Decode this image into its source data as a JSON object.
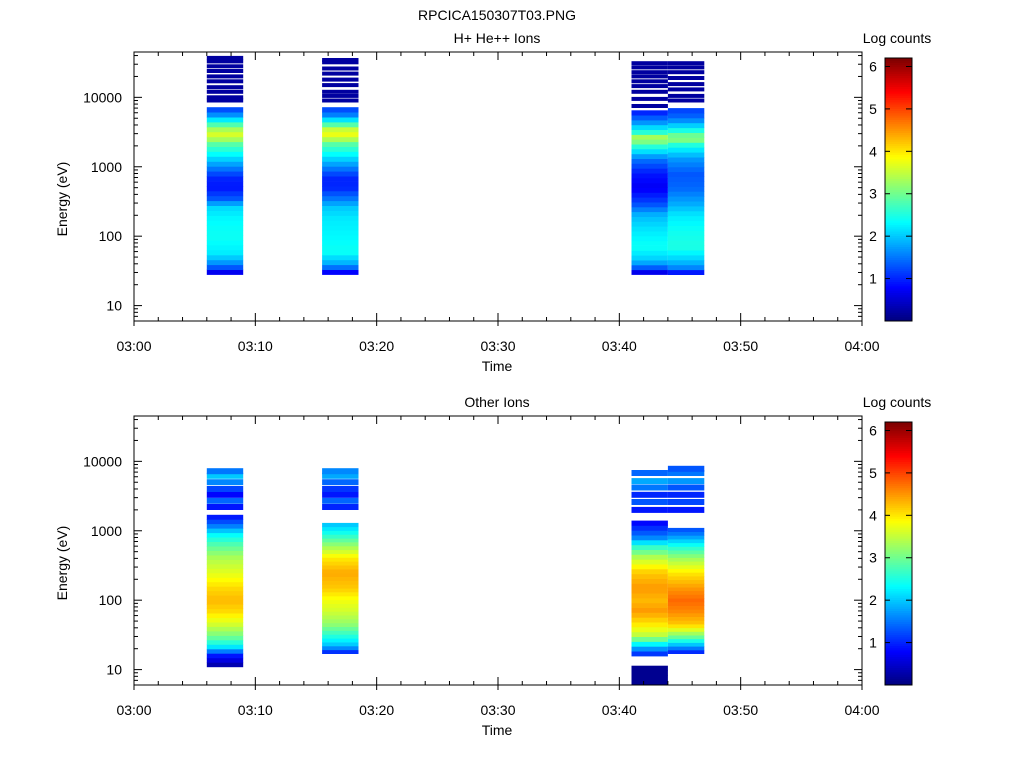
{
  "figure_title": "RPCICA150307T03.PNG",
  "chart_data": [
    {
      "type": "heatmap",
      "title": "H+ He++ Ions",
      "xlabel": "Time",
      "ylabel": "Energy (eV)",
      "x_ticks": [
        "03:00",
        "03:10",
        "03:20",
        "03:30",
        "03:40",
        "03:50",
        "04:00"
      ],
      "x_range": [
        "03:00",
        "04:00"
      ],
      "y_scale": "log",
      "y_ticks": [
        "10",
        "100",
        "1000",
        "10000"
      ],
      "y_range": [
        6,
        45000
      ],
      "colorbar": {
        "label": "Log counts",
        "range": [
          0,
          6.2
        ],
        "ticks": [
          "1",
          "2",
          "3",
          "4",
          "5",
          "6"
        ]
      },
      "columns": [
        {
          "t_start": 6.0,
          "t_end": 9.0,
          "profile": [
            [
              28,
              0.2
            ],
            [
              32,
              1.0
            ],
            [
              40,
              1.6
            ],
            [
              55,
              2.2
            ],
            [
              100,
              2.4
            ],
            [
              180,
              2.3
            ],
            [
              260,
              2.1
            ],
            [
              350,
              1.3
            ],
            [
              500,
              0.9
            ],
            [
              700,
              1.0
            ],
            [
              1000,
              1.6
            ],
            [
              1500,
              2.3
            ],
            [
              2200,
              2.9
            ],
            [
              2800,
              3.7
            ],
            [
              3400,
              3.4
            ],
            [
              4200,
              2.7
            ],
            [
              5500,
              1.7
            ],
            [
              6800,
              1.2
            ]
          ],
          "gap_start": 7200,
          "lines": [
            9000,
            10000,
            12000,
            14000,
            17000,
            20000,
            24000,
            28000,
            33000,
            37000
          ]
        },
        {
          "t_start": 15.5,
          "t_end": 18.5,
          "profile": [
            [
              28,
              0.3
            ],
            [
              32,
              1.1
            ],
            [
              40,
              1.8
            ],
            [
              60,
              2.4
            ],
            [
              100,
              2.3
            ],
            [
              180,
              2.2
            ],
            [
              260,
              2.0
            ],
            [
              350,
              1.5
            ],
            [
              500,
              1.0
            ],
            [
              700,
              1.0
            ],
            [
              1000,
              1.6
            ],
            [
              1500,
              2.3
            ],
            [
              2200,
              2.9
            ],
            [
              2800,
              3.8
            ],
            [
              3400,
              3.6
            ],
            [
              4200,
              2.7
            ],
            [
              5500,
              1.6
            ],
            [
              6800,
              1.2
            ]
          ],
          "gap_start": 7200,
          "lines": [
            9000,
            10500,
            12000,
            15000,
            18000,
            22000,
            26000,
            32000,
            34500
          ]
        },
        {
          "t_start": 41.0,
          "t_end": 44.0,
          "profile": [
            [
              28,
              0.3
            ],
            [
              34,
              1.2
            ],
            [
              45,
              2.0
            ],
            [
              70,
              2.4
            ],
            [
              120,
              2.2
            ],
            [
              200,
              1.9
            ],
            [
              300,
              1.2
            ],
            [
              500,
              0.7
            ],
            [
              800,
              0.9
            ],
            [
              1300,
              1.5
            ],
            [
              2000,
              2.6
            ],
            [
              2600,
              3.5
            ],
            [
              3200,
              2.5
            ],
            [
              4500,
              1.6
            ],
            [
              6000,
              1.0
            ]
          ],
          "gap_start": 6500,
          "lines": [
            7500,
            9500,
            12000,
            14500,
            17000,
            20000,
            23000,
            27000,
            31000
          ]
        },
        {
          "t_start": 44.0,
          "t_end": 47.0,
          "profile": [
            [
              28,
              0.5
            ],
            [
              34,
              1.5
            ],
            [
              45,
              2.0
            ],
            [
              70,
              2.5
            ],
            [
              120,
              2.4
            ],
            [
              200,
              2.2
            ],
            [
              300,
              1.8
            ],
            [
              500,
              1.4
            ],
            [
              800,
              1.3
            ],
            [
              1300,
              1.7
            ],
            [
              2000,
              2.4
            ],
            [
              2600,
              3.3
            ],
            [
              3200,
              2.6
            ],
            [
              4500,
              1.7
            ],
            [
              6000,
              1.2
            ]
          ],
          "gap_start": 7000,
          "lines": [
            9000,
            10500,
            13000,
            15500,
            19000,
            23000,
            27000,
            31000
          ]
        }
      ]
    },
    {
      "type": "heatmap",
      "title": "Other Ions",
      "xlabel": "Time",
      "ylabel": "Energy (eV)",
      "x_ticks": [
        "03:00",
        "03:10",
        "03:20",
        "03:30",
        "03:40",
        "03:50",
        "04:00"
      ],
      "x_range": [
        "03:00",
        "04:00"
      ],
      "y_scale": "log",
      "y_ticks": [
        "10",
        "100",
        "1000",
        "10000"
      ],
      "y_range": [
        6,
        45000
      ],
      "colorbar": {
        "label": "Log counts",
        "range": [
          0,
          6.2
        ],
        "ticks": [
          "1",
          "2",
          "3",
          "4",
          "5",
          "6"
        ]
      },
      "columns": [
        {
          "t_start": 6.0,
          "t_end": 9.0,
          "profile": [
            [
              11,
              0.15
            ],
            [
              16,
              0.9
            ],
            [
              22,
              2.3
            ],
            [
              30,
              3.0
            ],
            [
              45,
              3.6
            ],
            [
              70,
              4.1
            ],
            [
              100,
              4.3
            ],
            [
              150,
              4.1
            ],
            [
              250,
              3.7
            ],
            [
              400,
              3.4
            ],
            [
              600,
              2.9
            ],
            [
              900,
              2.3
            ],
            [
              1200,
              1.5
            ],
            [
              1600,
              0.9
            ]
          ],
          "gap_start": 1700,
          "upper": [
            [
              2200,
              0.9
            ],
            [
              2700,
              1.4
            ],
            [
              3300,
              0.8
            ],
            [
              4000,
              1.2
            ],
            [
              5000,
              1.6
            ],
            [
              6200,
              2.0
            ],
            [
              7200,
              1.5
            ]
          ]
        },
        {
          "t_start": 15.5,
          "t_end": 18.5,
          "profile": [
            [
              17,
              0.8
            ],
            [
              22,
              1.9
            ],
            [
              30,
              2.5
            ],
            [
              45,
              3.2
            ],
            [
              70,
              3.6
            ],
            [
              100,
              3.8
            ],
            [
              150,
              4.2
            ],
            [
              250,
              4.4
            ],
            [
              400,
              4.0
            ],
            [
              600,
              3.3
            ],
            [
              900,
              2.5
            ],
            [
              1200,
              2.0
            ]
          ],
          "gap_start": 1300,
          "upper": [
            [
              2200,
              1.0
            ],
            [
              2700,
              1.4
            ],
            [
              3300,
              0.9
            ],
            [
              4000,
              1.1
            ],
            [
              5000,
              1.4
            ],
            [
              6200,
              1.8
            ],
            [
              7200,
              1.6
            ]
          ]
        },
        {
          "t_start": 41.0,
          "t_end": 44.0,
          "profile": [
            [
              6,
              0.1
            ],
            [
              11,
              0.1
            ],
            [
              16,
              0.9
            ],
            [
              22,
              2.0
            ],
            [
              30,
              3.4
            ],
            [
              45,
              4.0
            ],
            [
              70,
              4.5
            ],
            [
              100,
              4.3
            ],
            [
              150,
              4.5
            ],
            [
              250,
              4.2
            ],
            [
              400,
              3.5
            ],
            [
              600,
              2.6
            ],
            [
              800,
              1.6
            ],
            [
              1000,
              1.2
            ],
            [
              1300,
              0.8
            ]
          ],
          "gap_start": 1400,
          "upper": [
            [
              2000,
              0.9
            ],
            [
              2600,
              1.3
            ],
            [
              3300,
              1.0
            ],
            [
              4200,
              1.5
            ],
            [
              5200,
              1.8
            ],
            [
              6800,
              1.4
            ]
          ],
          "low_gap": [
            11,
            16
          ]
        },
        {
          "t_start": 44.0,
          "t_end": 47.0,
          "profile": [
            [
              17,
              0.8
            ],
            [
              22,
              1.8
            ],
            [
              30,
              3.0
            ],
            [
              45,
              4.2
            ],
            [
              70,
              4.6
            ],
            [
              100,
              4.8
            ],
            [
              150,
              4.5
            ],
            [
              250,
              4.0
            ],
            [
              400,
              3.3
            ],
            [
              600,
              2.5
            ],
            [
              800,
              1.8
            ],
            [
              1000,
              1.3
            ]
          ],
          "gap_start": 1100,
          "upper": [
            [
              2000,
              0.9
            ],
            [
              2600,
              1.2
            ],
            [
              3300,
              1.0
            ],
            [
              4200,
              1.3
            ],
            [
              5200,
              1.7
            ],
            [
              6800,
              1.5
            ],
            [
              7800,
              1.3
            ]
          ]
        }
      ]
    }
  ]
}
